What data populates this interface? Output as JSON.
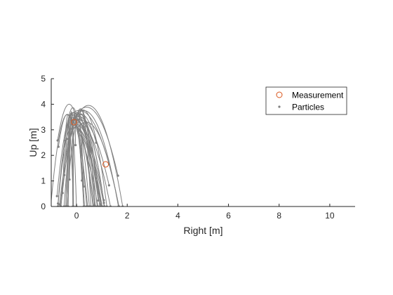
{
  "chart_data": {
    "type": "line",
    "title": "",
    "xlabel": "Right [m]",
    "ylabel": "Up [m]",
    "xlim": [
      -1,
      11
    ],
    "ylim": [
      0,
      5
    ],
    "xticks": [
      0,
      2,
      4,
      6,
      8,
      10
    ],
    "yticks": [
      0,
      1,
      2,
      3,
      4,
      5
    ],
    "grid": false,
    "legend_position": "top-right",
    "legend": [
      {
        "label": "Measurement",
        "marker": "open-circle",
        "color": "#d95319"
      },
      {
        "label": "Particles",
        "marker": "dot",
        "color": "#808080"
      }
    ],
    "measurements": [
      {
        "x": -0.1,
        "y": 3.3
      },
      {
        "x": 1.15,
        "y": 1.65
      }
    ],
    "particle_count": 60,
    "particle_origin": {
      "x": -0.1,
      "y": 3.3
    },
    "particle_vx_range": [
      -0.9,
      1.8
    ],
    "particle_vy_range": [
      -1.5,
      3.3
    ],
    "gravity": 9.81,
    "time_horizon": 1.3,
    "particle_color": "#808080",
    "particle_line_width": 1,
    "seed": 7
  }
}
